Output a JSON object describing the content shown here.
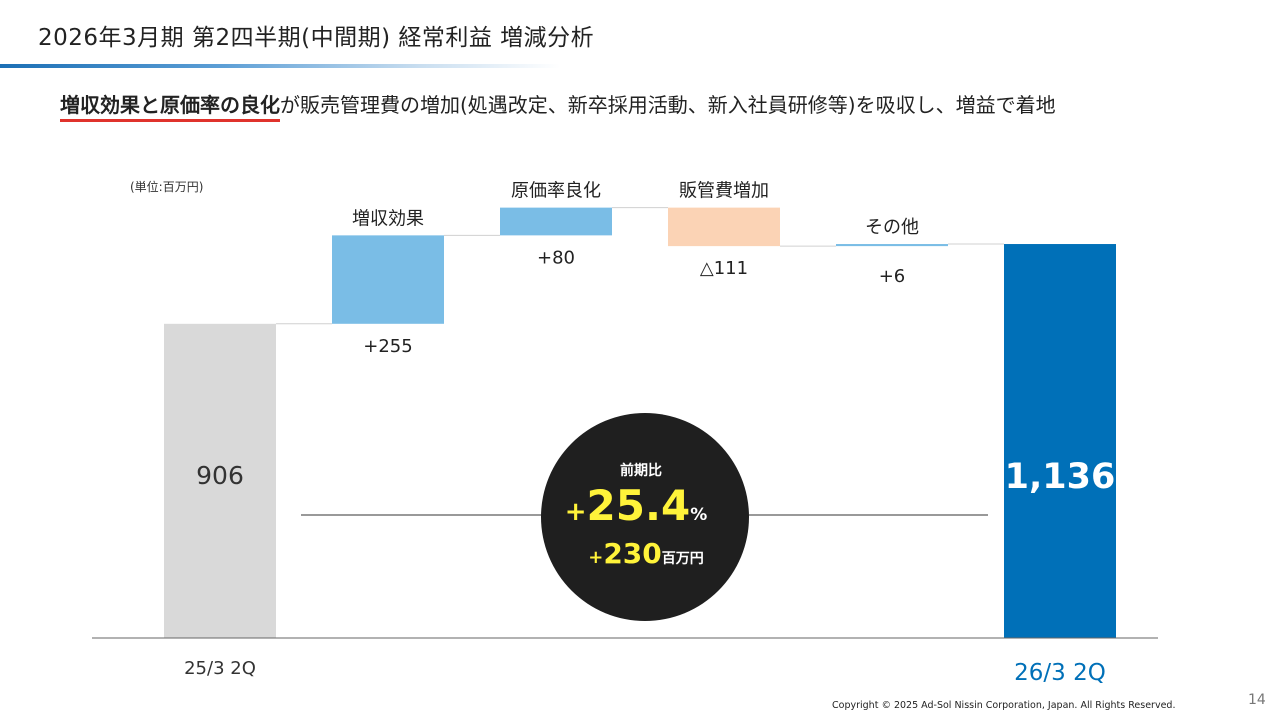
{
  "slide_title": "2026年3月期 第2四半期(中間期) 経常利益 増減分析",
  "headline": {
    "emphasis": "増収効果と原価率の良化",
    "rest": "が販売管理費の増加(処遇改定、新卒採用活動、新入社員研修等)を吸収し、増益で着地"
  },
  "unit_label": "(単位:百万円)",
  "colors": {
    "base_bar": "#d9d9d9",
    "increase_bar": "#7abde6",
    "decrease_bar": "#fbd3b5",
    "result_bar": "#0070b8",
    "circle": "#1f1f1f",
    "circle_accent": "#fff33a"
  },
  "chart_data": {
    "type": "bar",
    "subtype": "waterfall",
    "steps": [
      {
        "label": "25/3 2Q",
        "value": 906,
        "kind": "base",
        "value_text": "906"
      },
      {
        "label": "増収効果",
        "value": 255,
        "kind": "increase",
        "value_text": "+255"
      },
      {
        "label": "原価率良化",
        "value": 80,
        "kind": "increase",
        "value_text": "+80"
      },
      {
        "label": "販管費増加",
        "value": -111,
        "kind": "decrease",
        "value_text": "△111"
      },
      {
        "label": "その他",
        "value": 6,
        "kind": "increase",
        "value_text": "+6"
      },
      {
        "label": "26/3 2Q",
        "value": 1136,
        "kind": "total",
        "value_text": "1,136"
      }
    ],
    "summary": {
      "heading": "前期比",
      "percent_sign": "+",
      "percent_value": "25.4",
      "percent_unit": "%",
      "amount_sign": "+",
      "amount_value": "230",
      "amount_unit": "百万円"
    }
  },
  "footer": {
    "copyright": "Copyright © 2025 Ad-Sol Nissin Corporation, Japan. All Rights Reserved.",
    "page_number": "14"
  }
}
